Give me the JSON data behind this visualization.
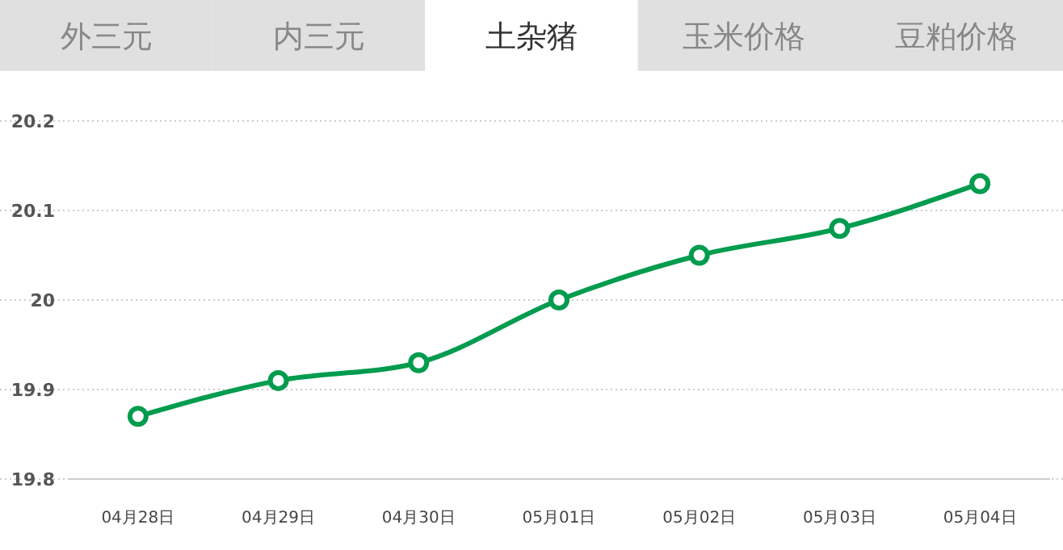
{
  "chart_data": {
    "type": "line",
    "title": "土杂猪",
    "annotations": [
      "外三元",
      "内三元",
      "玉米价格",
      "豆粕价格"
    ],
    "categories": [
      "04月28日",
      "04月29日",
      "04月30日",
      "05月01日",
      "05月02日",
      "05月03日",
      "05月04日"
    ],
    "series": [
      {
        "color": "#009c4e",
        "values": [
          19.87,
          19.91,
          19.93,
          20.0,
          20.05,
          20.08,
          20.13
        ]
      }
    ],
    "ylim": [
      19.8,
      20.2
    ],
    "yticks": [
      19.8,
      19.9,
      20,
      20.1,
      20.2
    ],
    "grid": "y",
    "marker": "circle",
    "line_style": "solid"
  }
}
